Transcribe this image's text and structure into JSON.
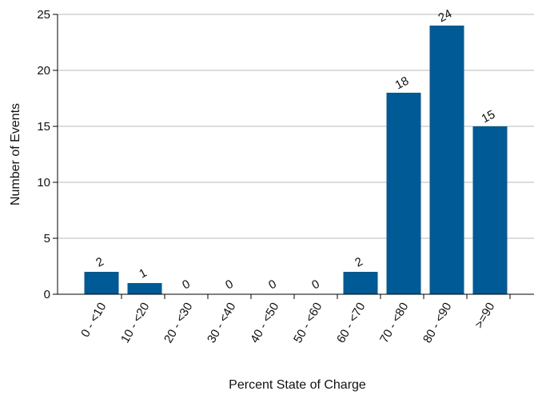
{
  "chart_data": {
    "type": "bar",
    "title": "",
    "xlabel": "Percent State of Charge",
    "ylabel": "Number of Events",
    "categories": [
      "0 - <10",
      "10 - <20",
      "20 - <30",
      "30 - <40",
      "40 - <50",
      "50 - <60",
      "60 - <70",
      "70 - <80",
      "80 - <90",
      ">=90"
    ],
    "values": [
      2,
      1,
      0,
      0,
      0,
      0,
      2,
      18,
      24,
      15
    ],
    "data_labels": [
      "2",
      "1",
      "0",
      "0",
      "0",
      "0",
      "2",
      "18",
      "24",
      "15"
    ],
    "yticks": [
      "0",
      "5",
      "10",
      "15",
      "20",
      "25"
    ],
    "ylim": [
      0,
      25
    ],
    "grid": "horizontal",
    "legend": "none",
    "bar_color": "#005a96",
    "grid_color": "#b8b8b8"
  }
}
